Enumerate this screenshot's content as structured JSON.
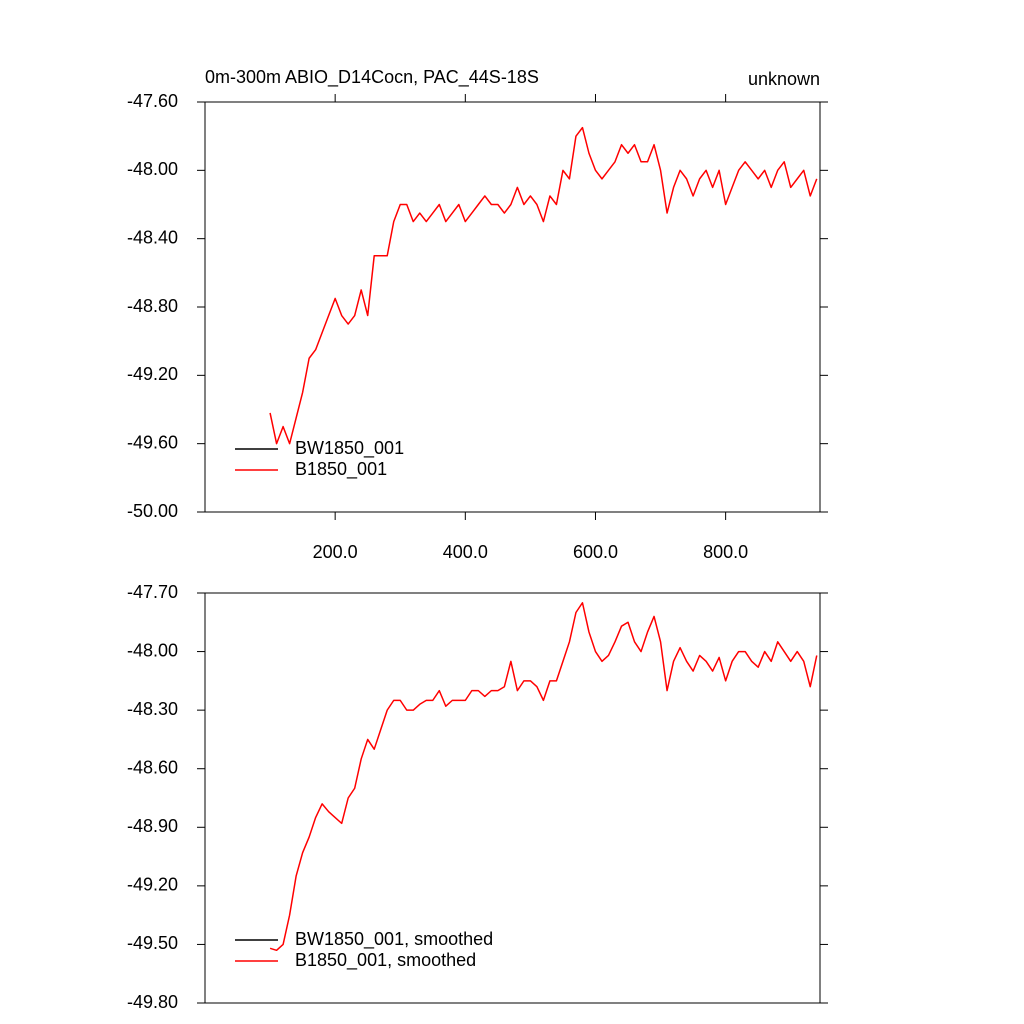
{
  "chart_data": [
    {
      "type": "line",
      "title": "0m-300m ABIO_D14Cocn, PAC_44S-18S",
      "subtitle": "unknown",
      "x": [
        100,
        110,
        120,
        130,
        140,
        150,
        160,
        170,
        180,
        190,
        200,
        210,
        220,
        230,
        240,
        250,
        260,
        270,
        280,
        290,
        300,
        310,
        320,
        330,
        340,
        350,
        360,
        370,
        380,
        390,
        400,
        410,
        420,
        430,
        440,
        450,
        460,
        470,
        480,
        490,
        500,
        510,
        520,
        530,
        540,
        550,
        560,
        570,
        580,
        590,
        600,
        610,
        620,
        630,
        640,
        650,
        660,
        670,
        680,
        690,
        700,
        710,
        720,
        730,
        740,
        750,
        760,
        770,
        780,
        790,
        800,
        810,
        820,
        830,
        840,
        850,
        860,
        870,
        880,
        890,
        900,
        910,
        920,
        930,
        940
      ],
      "series": [
        {
          "name": "BW1850_001",
          "color": "#000000",
          "values": [
            null,
            null,
            null,
            null,
            null,
            null,
            null,
            null,
            null,
            null,
            null,
            null,
            null,
            null,
            null,
            null,
            null,
            null,
            null,
            null,
            null,
            null,
            null,
            null,
            null,
            null,
            null,
            null,
            null,
            null,
            null,
            null,
            null,
            null,
            null,
            null,
            null,
            null,
            null,
            null,
            null,
            null,
            null,
            null,
            null,
            null,
            null,
            null,
            null,
            null,
            null,
            null,
            null,
            null,
            null,
            null,
            null,
            null,
            null,
            null,
            null,
            null,
            null,
            null,
            null,
            null,
            null,
            null,
            null,
            null,
            null,
            null,
            null,
            null,
            null,
            null,
            null,
            null,
            null,
            null,
            null,
            null,
            null,
            null,
            null
          ]
        },
        {
          "name": "B1850_001",
          "color": "#ff0000",
          "values": [
            -49.42,
            -49.6,
            -49.5,
            -49.6,
            -49.45,
            -49.3,
            -49.1,
            -49.05,
            -48.95,
            -48.85,
            -48.75,
            -48.85,
            -48.9,
            -48.85,
            -48.7,
            -48.85,
            -48.5,
            -48.5,
            -48.5,
            -48.3,
            -48.2,
            -48.2,
            -48.3,
            -48.25,
            -48.3,
            -48.25,
            -48.2,
            -48.3,
            -48.25,
            -48.2,
            -48.3,
            -48.25,
            -48.2,
            -48.15,
            -48.2,
            -48.2,
            -48.25,
            -48.2,
            -48.1,
            -48.2,
            -48.15,
            -48.2,
            -48.3,
            -48.15,
            -48.2,
            -48.0,
            -48.05,
            -47.8,
            -47.75,
            -47.9,
            -48.0,
            -48.05,
            -48.0,
            -47.95,
            -47.85,
            -47.9,
            -47.85,
            -47.95,
            -47.95,
            -47.85,
            -48.0,
            -48.25,
            -48.1,
            -48.0,
            -48.05,
            -48.15,
            -48.05,
            -48.0,
            -48.1,
            -48.0,
            -48.2,
            -48.1,
            -48.0,
            -47.95,
            -48.0,
            -48.05,
            -48.0,
            -48.1,
            -48.0,
            -47.95,
            -48.1,
            -48.05,
            -48.0,
            -48.15,
            -48.05
          ]
        }
      ],
      "xlim": [
        0,
        945
      ],
      "xticks": [
        {
          "value": 200,
          "label": "200.0"
        },
        {
          "value": 400,
          "label": "400.0"
        },
        {
          "value": 600,
          "label": "600.0"
        },
        {
          "value": 800,
          "label": "800.0"
        }
      ],
      "ylim": [
        -50,
        -47.6
      ],
      "yticks": [
        {
          "value": -47.6,
          "label": "-47.60"
        },
        {
          "value": -48,
          "label": "-48.00"
        },
        {
          "value": -48.4,
          "label": "-48.40"
        },
        {
          "value": -48.8,
          "label": "-48.80"
        },
        {
          "value": -49.2,
          "label": "-49.20"
        },
        {
          "value": -49.6,
          "label": "-49.60"
        },
        {
          "value": -50,
          "label": "-50.00"
        }
      ],
      "legend": "lower-left"
    },
    {
      "type": "line",
      "x": [
        100,
        110,
        120,
        130,
        140,
        150,
        160,
        170,
        180,
        190,
        200,
        210,
        220,
        230,
        240,
        250,
        260,
        270,
        280,
        290,
        300,
        310,
        320,
        330,
        340,
        350,
        360,
        370,
        380,
        390,
        400,
        410,
        420,
        430,
        440,
        450,
        460,
        470,
        480,
        490,
        500,
        510,
        520,
        530,
        540,
        550,
        560,
        570,
        580,
        590,
        600,
        610,
        620,
        630,
        640,
        650,
        660,
        670,
        680,
        690,
        700,
        710,
        720,
        730,
        740,
        750,
        760,
        770,
        780,
        790,
        800,
        810,
        820,
        830,
        840,
        850,
        860,
        870,
        880,
        890,
        900,
        910,
        920,
        930,
        940
      ],
      "series": [
        {
          "name": "BW1850_001, smoothed",
          "color": "#000000",
          "values": [
            null,
            null,
            null,
            null,
            null,
            null,
            null,
            null,
            null,
            null,
            null,
            null,
            null,
            null,
            null,
            null,
            null,
            null,
            null,
            null,
            null,
            null,
            null,
            null,
            null,
            null,
            null,
            null,
            null,
            null,
            null,
            null,
            null,
            null,
            null,
            null,
            null,
            null,
            null,
            null,
            null,
            null,
            null,
            null,
            null,
            null,
            null,
            null,
            null,
            null,
            null,
            null,
            null,
            null,
            null,
            null,
            null,
            null,
            null,
            null,
            null,
            null,
            null,
            null,
            null,
            null,
            null,
            null,
            null,
            null,
            null,
            null,
            null,
            null,
            null,
            null,
            null,
            null,
            null,
            null,
            null,
            null,
            null,
            null,
            null
          ]
        },
        {
          "name": "B1850_001, smoothed",
          "color": "#ff0000",
          "values": [
            -49.52,
            -49.53,
            -49.5,
            -49.35,
            -49.15,
            -49.03,
            -48.95,
            -48.85,
            -48.78,
            -48.82,
            -48.85,
            -48.88,
            -48.75,
            -48.7,
            -48.55,
            -48.45,
            -48.5,
            -48.4,
            -48.3,
            -48.25,
            -48.25,
            -48.3,
            -48.3,
            -48.27,
            -48.25,
            -48.25,
            -48.2,
            -48.28,
            -48.25,
            -48.25,
            -48.25,
            -48.2,
            -48.2,
            -48.23,
            -48.2,
            -48.2,
            -48.18,
            -48.05,
            -48.2,
            -48.15,
            -48.15,
            -48.18,
            -48.25,
            -48.15,
            -48.15,
            -48.05,
            -47.95,
            -47.8,
            -47.75,
            -47.9,
            -48.0,
            -48.05,
            -48.02,
            -47.95,
            -47.87,
            -47.85,
            -47.95,
            -48.0,
            -47.9,
            -47.82,
            -47.95,
            -48.2,
            -48.05,
            -47.98,
            -48.05,
            -48.1,
            -48.02,
            -48.05,
            -48.1,
            -48.03,
            -48.15,
            -48.05,
            -48.0,
            -48.0,
            -48.05,
            -48.08,
            -48.0,
            -48.05,
            -47.95,
            -48.0,
            -48.05,
            -48.0,
            -48.05,
            -48.18,
            -48.02
          ]
        }
      ],
      "xlim": [
        0,
        945
      ],
      "ylim": [
        -49.8,
        -47.7
      ],
      "yticks": [
        {
          "value": -47.7,
          "label": "-47.70"
        },
        {
          "value": -48,
          "label": "-48.00"
        },
        {
          "value": -48.3,
          "label": "-48.30"
        },
        {
          "value": -48.6,
          "label": "-48.60"
        },
        {
          "value": -48.9,
          "label": "-48.90"
        },
        {
          "value": -49.2,
          "label": "-49.20"
        },
        {
          "value": -49.5,
          "label": "-49.50"
        },
        {
          "value": -49.8,
          "label": "-49.80"
        }
      ],
      "legend": "lower-left"
    }
  ]
}
